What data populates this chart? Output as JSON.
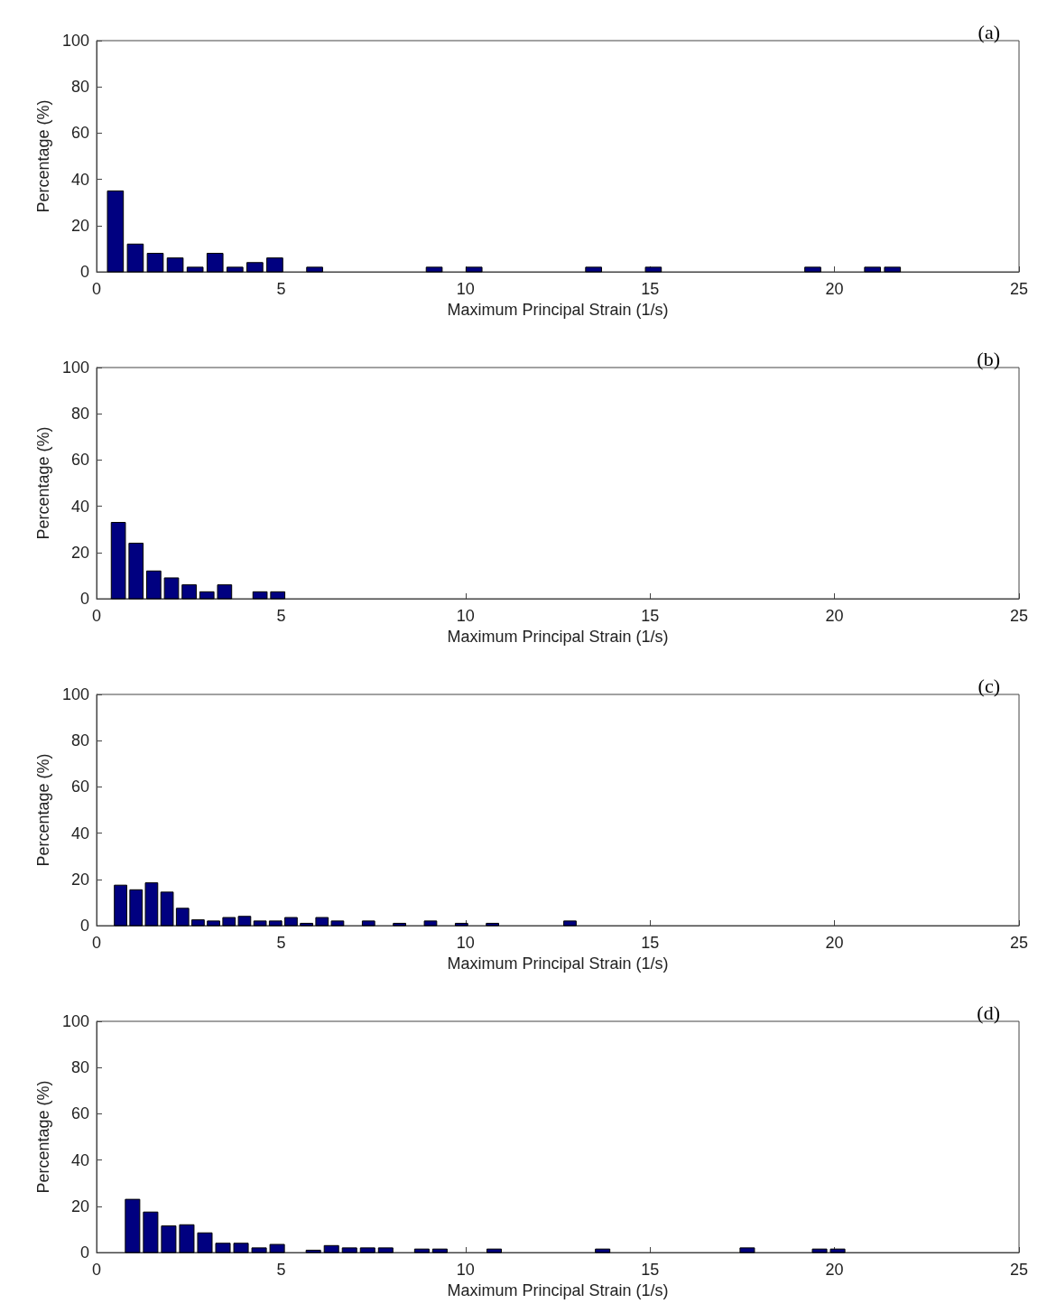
{
  "chart_data": [
    {
      "type": "histogram",
      "xlabel": "Maximum Principal Strain (1/s)",
      "ylabel": "Percentage (%)",
      "annotations": [
        "(a)"
      ],
      "color": "#000080",
      "bins": [
        0.24,
        0.78,
        1.32,
        1.86,
        2.4,
        2.94,
        3.48,
        4.02,
        4.56,
        5.1,
        5.64,
        6.18,
        6.72,
        7.26,
        7.8,
        8.34,
        8.88,
        9.42,
        9.96,
        10.5,
        11.04,
        11.58,
        12.12,
        12.66,
        13.2,
        13.74,
        14.28,
        14.82,
        15.36,
        15.9,
        16.44,
        16.98,
        17.52,
        18.06,
        18.6,
        19.14,
        19.68,
        20.22,
        20.76,
        21.3,
        21.84
      ],
      "values": [
        35,
        12,
        8,
        6,
        2,
        8,
        2,
        4,
        6,
        0,
        2,
        0,
        0,
        0,
        0,
        0,
        2,
        0,
        2,
        0,
        0,
        0,
        0,
        0,
        2,
        0,
        0,
        2,
        0,
        0,
        0,
        0,
        0,
        0,
        0,
        2,
        0,
        0,
        2,
        2
      ],
      "xlim": [
        0,
        25
      ],
      "xticks": [
        0,
        5,
        10,
        15,
        20,
        25
      ],
      "ylim": [
        0,
        100
      ],
      "yticks": [
        0,
        20,
        40,
        60,
        80,
        100
      ],
      "grid": false
    },
    {
      "type": "histogram",
      "xlabel": "Maximum Principal Strain (1/s)",
      "ylabel": "Percentage (%)",
      "annotations": [
        "(b)"
      ],
      "color": "#000080",
      "bins": [
        0.35,
        0.83,
        1.31,
        1.79,
        2.27,
        2.75,
        3.23,
        3.71,
        4.19,
        4.67,
        5.15
      ],
      "values": [
        33,
        24,
        12,
        9,
        6,
        3,
        6,
        0,
        3,
        3
      ],
      "xlim": [
        0,
        25
      ],
      "xticks": [
        0,
        5,
        10,
        15,
        20,
        25
      ],
      "ylim": [
        0,
        100
      ],
      "yticks": [
        0,
        20,
        40,
        60,
        80,
        100
      ],
      "grid": false
    },
    {
      "type": "histogram",
      "xlabel": "Maximum Principal Strain (1/s)",
      "ylabel": "Percentage (%)",
      "annotations": [
        "(c)"
      ],
      "color": "#000080",
      "bins": [
        0.44,
        0.86,
        1.28,
        1.7,
        2.12,
        2.54,
        2.96,
        3.38,
        3.8,
        4.22,
        4.64,
        5.06,
        5.48,
        5.9,
        6.32,
        6.74,
        7.16,
        7.58,
        8,
        8.42,
        8.84,
        9.26,
        9.68,
        10.1,
        10.52,
        10.94,
        11.36,
        11.78,
        12.2,
        12.62,
        13.04
      ],
      "values": [
        17.5,
        15.5,
        18.5,
        14.5,
        7.5,
        2.5,
        2,
        3.5,
        4,
        2,
        2,
        3.5,
        1,
        3.5,
        2,
        0,
        2,
        0,
        1,
        0,
        2,
        0,
        1,
        0,
        1,
        0,
        0,
        0,
        0,
        2
      ],
      "xlim": [
        0,
        25
      ],
      "xticks": [
        0,
        5,
        10,
        15,
        20,
        25
      ],
      "ylim": [
        0,
        100
      ],
      "yticks": [
        0,
        20,
        40,
        60,
        80,
        100
      ],
      "grid": false
    },
    {
      "type": "histogram",
      "xlabel": "Maximum Principal Strain (1/s)",
      "ylabel": "Percentage (%)",
      "annotations": [
        "(d)"
      ],
      "color": "#000080",
      "bins": [
        0.73,
        1.22,
        1.71,
        2.2,
        2.69,
        3.18,
        3.67,
        4.16,
        4.65,
        5.14,
        5.63,
        6.12,
        6.61,
        7.1,
        7.59,
        8.08,
        8.57,
        9.06,
        9.55,
        10.04,
        10.53,
        11.02,
        11.51,
        12,
        12.49,
        12.98,
        13.47,
        13.96,
        14.45,
        14.94,
        15.43,
        15.92,
        16.41,
        16.9,
        17.39,
        17.88,
        18.37,
        18.86,
        19.35,
        19.84,
        20.33
      ],
      "values": [
        23,
        17.5,
        11.5,
        12,
        8.5,
        4,
        4,
        2,
        3.5,
        0,
        1,
        3,
        2,
        2,
        2,
        0,
        1.5,
        1.5,
        0,
        0,
        1.5,
        0,
        0,
        0,
        0,
        0,
        1.5,
        0,
        0,
        0,
        0,
        0,
        0,
        0,
        2,
        0,
        0,
        0,
        1.5,
        1.5
      ],
      "xlim": [
        0,
        25
      ],
      "xticks": [
        0,
        5,
        10,
        15,
        20,
        25
      ],
      "ylim": [
        0,
        100
      ],
      "yticks": [
        0,
        20,
        40,
        60,
        80,
        100
      ],
      "grid": false
    }
  ]
}
